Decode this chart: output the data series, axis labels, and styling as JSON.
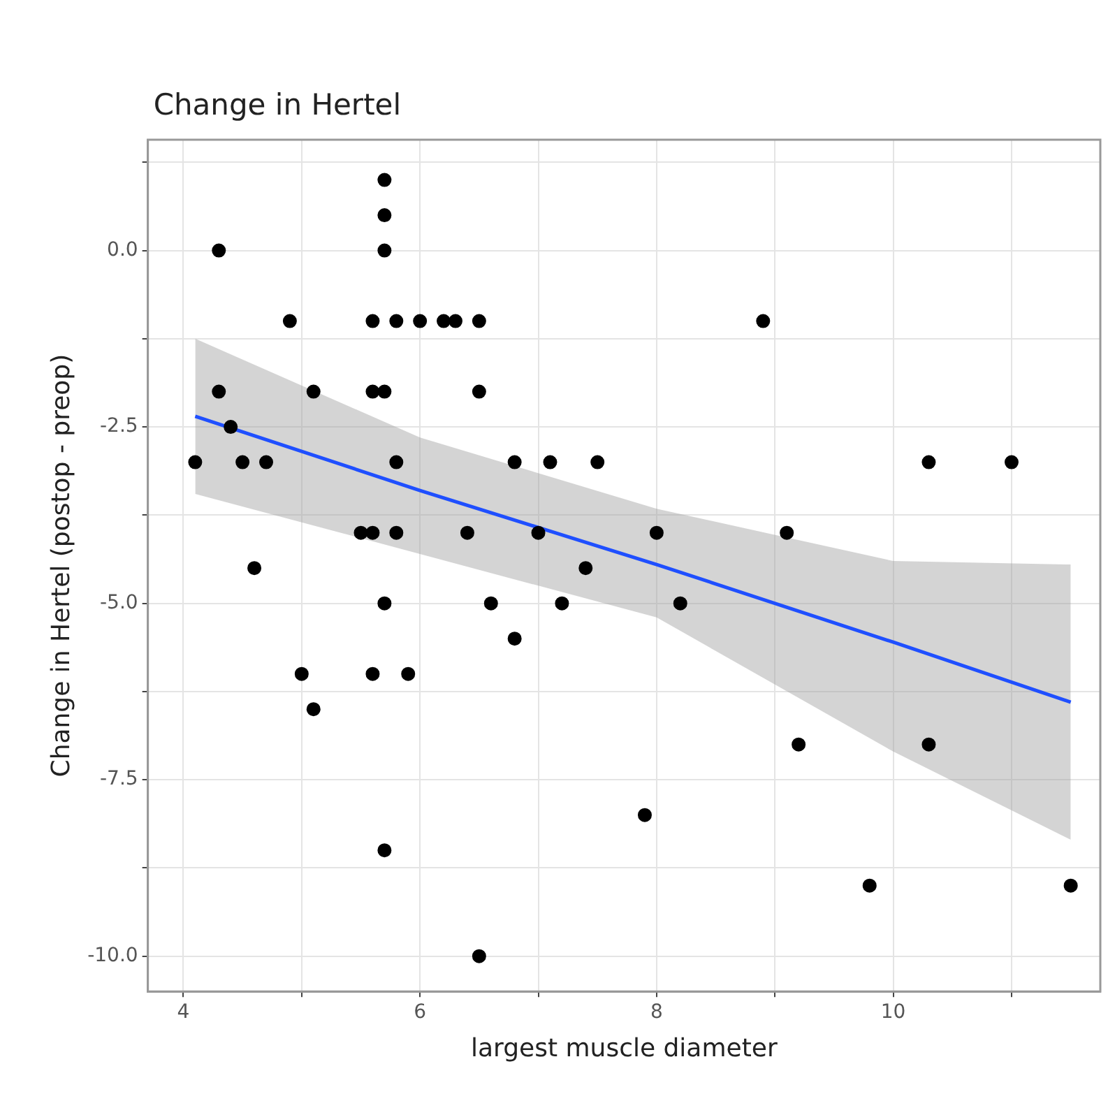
{
  "chart_data": {
    "type": "scatter",
    "title": "Change in Hertel",
    "xlabel": "largest muscle diameter",
    "ylabel": "Change in Hertel (postop - preop)",
    "xlim": [
      3.7,
      11.75
    ],
    "ylim": [
      -10.5,
      1.57
    ],
    "xticks": [
      {
        "value": 5,
        "label": null
      },
      4,
      6,
      8,
      10,
      {
        "value": 7,
        "label": null
      },
      {
        "value": 9,
        "label": null
      },
      {
        "value": 11,
        "label": null
      }
    ],
    "yticks": [
      {
        "value": -10,
        "label": "-10.0"
      },
      -7.5,
      {
        "value": -5,
        "label": "-5.0"
      },
      -2.5,
      {
        "value": 0,
        "label": "0.0"
      },
      {
        "value": 1.25,
        "label": null
      },
      {
        "value": -1.25,
        "label": null
      },
      {
        "value": -3.75,
        "label": null
      },
      {
        "value": -6.25,
        "label": null
      },
      {
        "value": -8.75,
        "label": null
      }
    ],
    "grid": true,
    "legend": false,
    "series": [
      {
        "marker": "circle",
        "color": "#000000",
        "x": [
          4.1,
          4.3,
          4.3,
          4.4,
          4.5,
          4.7,
          4.6,
          4.9,
          5.0,
          5.1,
          5.1,
          5.7,
          5.7,
          5.7,
          5.6,
          5.8,
          6.0,
          6.2,
          6.3,
          6.5,
          5.6,
          5.7,
          6.5,
          5.8,
          5.5,
          5.6,
          5.8,
          6.4,
          6.8,
          7.1,
          7.5,
          5.7,
          5.6,
          5.9,
          6.6,
          6.8,
          7.2,
          7.0,
          7.4,
          5.7,
          6.5,
          8.9,
          8.0,
          8.2,
          7.9,
          9.1,
          9.2,
          10.3,
          11.0,
          10.3,
          9.8,
          11.5
        ],
        "values": [
          -3,
          0,
          -2,
          -2.5,
          -3,
          -3,
          -4.5,
          -1,
          -6,
          -2,
          -6.5,
          1,
          0.5,
          0,
          -1,
          -1,
          -1,
          -1,
          -1,
          -1,
          -2,
          -2,
          -2,
          -3,
          -4,
          -4,
          -4,
          -4,
          -3,
          -3,
          -3,
          -5,
          -6,
          -6,
          -5,
          -5.5,
          -5,
          -4,
          -4.5,
          -8.5,
          -10,
          -1,
          -4,
          -5,
          -8,
          -4,
          -7,
          -3,
          -3,
          -7,
          -9,
          -9
        ]
      },
      {
        "type": "line",
        "color": "#1f4fff",
        "x": [
          4.1,
          6,
          8,
          10,
          11.5
        ],
        "values": [
          -2.35,
          -3.4,
          -4.45,
          -5.55,
          -6.4
        ],
        "lower": [
          -3.45,
          -4.3,
          -5.2,
          -7.1,
          -8.35
        ],
        "upper": [
          -1.25,
          -2.65,
          -3.66,
          -4.4,
          -4.45
        ]
      }
    ]
  }
}
